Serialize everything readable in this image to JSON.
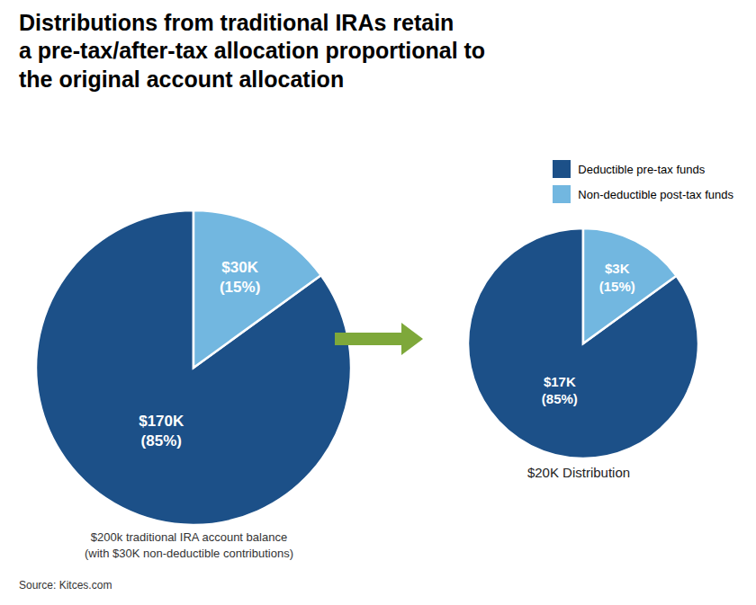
{
  "title": "Distributions from traditional IRAs retain\na pre-tax/after-tax allocation proportional to\nthe original account allocation",
  "annotations": [
    {
      "type": "arrow",
      "color": "#7ea83a"
    },
    {
      "text": "Source: Kitces.com"
    }
  ],
  "chart_data": [
    {
      "type": "pie",
      "categories": [
        "Deductible pre-tax funds",
        "Non-deductible post-tax funds"
      ],
      "values": [
        85,
        15
      ],
      "colors": [
        "#1c5088",
        "#72b7e0"
      ],
      "data_labels": true,
      "value_labels": [
        "$170K\n(85%)",
        "$30K\n(15%)"
      ],
      "annotations": [
        "$200k traditional IRA account balance\n(with $30K non-deductible contributions)"
      ],
      "legend": "upper right"
    },
    {
      "type": "pie",
      "categories": [
        "Deductible pre-tax funds",
        "Non-deductible post-tax funds"
      ],
      "values": [
        85,
        15
      ],
      "colors": [
        "#1c5088",
        "#72b7e0"
      ],
      "data_labels": true,
      "value_labels": [
        "$17K\n(85%)",
        "$3K\n(15%)"
      ],
      "annotations": [
        "$20K Distribution"
      ]
    }
  ]
}
